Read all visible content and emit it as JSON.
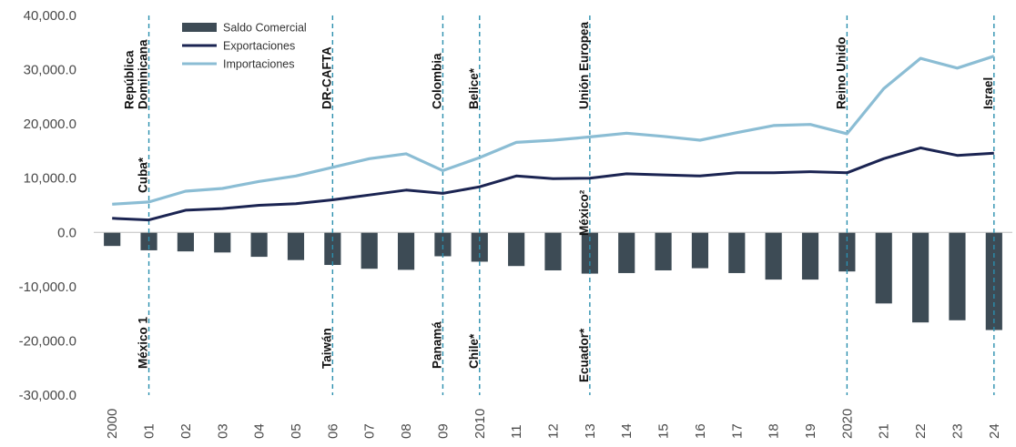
{
  "chart_data": {
    "type": "bar+line",
    "categories": [
      "2000",
      "01",
      "02",
      "03",
      "04",
      "05",
      "06",
      "07",
      "08",
      "09",
      "2010",
      "11",
      "12",
      "13",
      "14",
      "15",
      "16",
      "17",
      "18",
      "19",
      "2020",
      "21",
      "22",
      "23",
      "24"
    ],
    "ylim": [
      -30000,
      40000
    ],
    "yticks": [
      "40,000.0",
      "30,000.0",
      "20,000.0",
      "10,000.0",
      "0.0",
      "-10,000.0",
      "-20,000.0",
      "-30,000.0"
    ],
    "grid": false,
    "legend_position": "top-left",
    "series": [
      {
        "name": "Saldo Comercial",
        "type": "bar",
        "color": "#3d4b55",
        "values": [
          -2500,
          -3300,
          -3500,
          -3700,
          -4500,
          -5100,
          -6000,
          -6700,
          -6900,
          -4400,
          -5400,
          -6200,
          -7000,
          -7600,
          -7500,
          -7000,
          -6600,
          -7500,
          -8700,
          -8700,
          -7200,
          -13100,
          -16600,
          -16200,
          -18000
        ]
      },
      {
        "name": "Exportaciones",
        "type": "line",
        "color": "#1b2452",
        "values": [
          2600,
          2300,
          4100,
          4400,
          5000,
          5300,
          6000,
          6900,
          7800,
          7200,
          8400,
          10400,
          9900,
          10000,
          10800,
          10600,
          10400,
          11000,
          11000,
          11200,
          11000,
          13600,
          15600,
          14200,
          14600
        ]
      },
      {
        "name": "Importaciones",
        "type": "line",
        "color": "#8bbdd4",
        "values": [
          5200,
          5600,
          7600,
          8100,
          9400,
          10400,
          12000,
          13600,
          14500,
          11400,
          13800,
          16600,
          17000,
          17600,
          18300,
          17700,
          17000,
          18400,
          19700,
          19900,
          18200,
          26500,
          32100,
          30300,
          32500
        ]
      }
    ],
    "annotations": [
      {
        "index": 1,
        "top": [
          "República",
          "Dominicana"
        ],
        "mid": [
          "Cuba*"
        ],
        "bottom": [
          "México 1"
        ]
      },
      {
        "index": 6,
        "top": [
          "DR-CAFTA"
        ],
        "bottom": [
          "Taiwán"
        ]
      },
      {
        "index": 9,
        "top": [
          "Colombia"
        ],
        "bottom": [
          "Panamá"
        ]
      },
      {
        "index": 10,
        "top": [
          "Belice*"
        ],
        "bottom": [
          "Chile*"
        ]
      },
      {
        "index": 13,
        "top": [
          "Unión Europea"
        ],
        "mid": [
          "México²"
        ],
        "bottom": [
          "Ecuador*"
        ]
      },
      {
        "index": 20,
        "top": [
          "Reino Unido"
        ]
      },
      {
        "index": 24,
        "top": [
          "Israel"
        ]
      }
    ]
  }
}
